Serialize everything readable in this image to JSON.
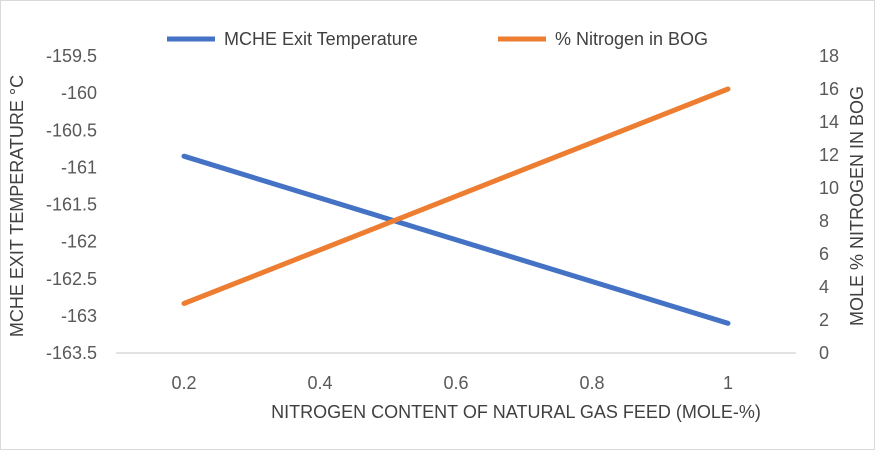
{
  "chart_data": {
    "type": "line",
    "x": [
      0.2,
      1
    ],
    "xticks": [
      "0.2",
      "0.4",
      "0.6",
      "0.8",
      "1"
    ],
    "xlim": [
      0.1,
      1.1
    ],
    "xlabel": "NITROGEN CONTENT OF NATURAL GAS FEED (MOLE-%)",
    "ylabel": "MCHE EXIT TEMPERATURE °C",
    "ylim": [
      -163.5,
      -159.5
    ],
    "yticks": [
      "-159.5",
      "-160",
      "-160.5",
      "-161",
      "-161.5",
      "-162",
      "-162.5",
      "-163",
      "-163.5"
    ],
    "y2label": "MOLE % NITROGEN IN BOG",
    "y2lim": [
      0,
      18
    ],
    "y2ticks": [
      "0",
      "2",
      "4",
      "6",
      "8",
      "10",
      "12",
      "14",
      "16",
      "18"
    ],
    "grid": false,
    "legend": "top-center",
    "series": [
      {
        "name": "MCHE Exit Temperature",
        "axis": "left",
        "color": "#4472c4",
        "values": [
          -160.85,
          -163.1
        ]
      },
      {
        "name": "% Nitrogen in BOG",
        "axis": "right",
        "color": "#ed7d31",
        "values": [
          3.0,
          16.0
        ]
      }
    ]
  }
}
